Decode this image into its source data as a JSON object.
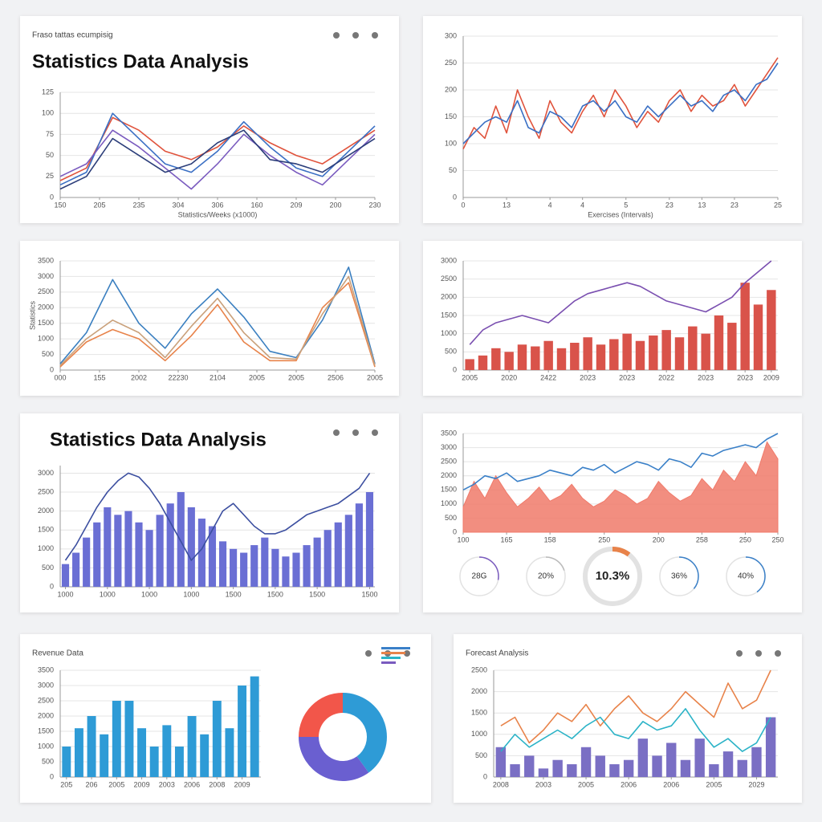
{
  "chart_data": [
    {
      "type": "line",
      "header": "Fraso tattas ecumpisig",
      "title": "Statistics Data Analysis",
      "xlabel": "Statistics/Weeks (x1000)",
      "xlim": [
        0,
        12
      ],
      "xticks": [
        {
          "value": 0,
          "label": "150"
        },
        {
          "value": 1.5,
          "label": "205"
        },
        {
          "value": 3,
          "label": "235"
        },
        {
          "value": 4.5,
          "label": "304"
        },
        {
          "value": 6,
          "label": "306"
        },
        {
          "value": 7.5,
          "label": "160"
        },
        {
          "value": 9,
          "label": "209"
        },
        {
          "value": 10.5,
          "label": "200"
        },
        {
          "value": 12,
          "label": "230"
        }
      ],
      "ylim": [
        0,
        125
      ],
      "yticks": [
        0,
        25,
        50,
        75,
        100,
        125
      ],
      "series": [
        {
          "color": "#e0533c",
          "values": [
            20,
            35,
            95,
            80,
            55,
            45,
            60,
            85,
            65,
            50,
            40,
            60,
            80
          ]
        },
        {
          "color": "#3a6fc4",
          "values": [
            15,
            30,
            100,
            70,
            40,
            30,
            55,
            90,
            60,
            35,
            25,
            55,
            85
          ]
        },
        {
          "color": "#7a5bbf",
          "values": [
            25,
            40,
            80,
            60,
            35,
            10,
            40,
            75,
            50,
            30,
            15,
            45,
            75
          ]
        },
        {
          "color": "#2c3e7a",
          "values": [
            10,
            25,
            70,
            50,
            30,
            40,
            65,
            80,
            45,
            40,
            30,
            50,
            70
          ]
        }
      ]
    },
    {
      "type": "line",
      "xlabel": "Exercises (Intervals)",
      "xlim": [
        0,
        29
      ],
      "xticks": [
        {
          "value": 0,
          "label": "0"
        },
        {
          "value": 4,
          "label": "13"
        },
        {
          "value": 8,
          "label": "4"
        },
        {
          "value": 11,
          "label": "4"
        },
        {
          "value": 15,
          "label": "5"
        },
        {
          "value": 19,
          "label": "23"
        },
        {
          "value": 22,
          "label": "13"
        },
        {
          "value": 25,
          "label": "23"
        },
        {
          "value": 29,
          "label": "25"
        }
      ],
      "ylim": [
        0,
        300
      ],
      "yticks": [
        0,
        50,
        100,
        150,
        200,
        250,
        300
      ],
      "series": [
        {
          "color": "#e0533c",
          "values": [
            90,
            130,
            110,
            170,
            120,
            200,
            150,
            110,
            180,
            140,
            120,
            160,
            190,
            150,
            200,
            170,
            130,
            160,
            140,
            180,
            200,
            160,
            190,
            170,
            180,
            210,
            170,
            200,
            230,
            260
          ]
        },
        {
          "color": "#3a6fc4",
          "values": [
            100,
            120,
            140,
            150,
            140,
            180,
            130,
            120,
            160,
            150,
            130,
            170,
            180,
            160,
            180,
            150,
            140,
            170,
            150,
            170,
            190,
            170,
            180,
            160,
            190,
            200,
            180,
            210,
            220,
            250
          ]
        }
      ]
    },
    {
      "type": "line",
      "ylabel": "Statistics",
      "xlim": [
        0,
        12
      ],
      "xticks": [
        {
          "value": 0,
          "label": "000"
        },
        {
          "value": 1.5,
          "label": "155"
        },
        {
          "value": 3,
          "label": "2002"
        },
        {
          "value": 4.5,
          "label": "22230"
        },
        {
          "value": 6,
          "label": "2104"
        },
        {
          "value": 7.5,
          "label": "2005"
        },
        {
          "value": 9,
          "label": "2005"
        },
        {
          "value": 10.5,
          "label": "2506"
        },
        {
          "value": 12,
          "label": "2005"
        }
      ],
      "ylim": [
        0,
        3500
      ],
      "yticks": [
        0,
        500,
        1000,
        1500,
        2000,
        2500,
        3000,
        3500
      ],
      "series": [
        {
          "color": "#3a7fc0",
          "values": [
            200,
            1200,
            2900,
            1500,
            700,
            1800,
            2600,
            1700,
            600,
            400,
            1600,
            3300,
            200
          ]
        },
        {
          "color": "#e8834a",
          "values": [
            100,
            900,
            1300,
            1000,
            300,
            1100,
            2100,
            900,
            300,
            300,
            2000,
            2800,
            100
          ]
        },
        {
          "color": "#c9a07a",
          "values": [
            150,
            1000,
            1600,
            1200,
            400,
            1400,
            2300,
            1200,
            400,
            350,
            1800,
            3000,
            150
          ]
        }
      ]
    },
    {
      "type": "combo",
      "xlim": [
        -0.5,
        23.5
      ],
      "xticks": [
        {
          "value": 0,
          "label": "2005"
        },
        {
          "value": 3,
          "label": "2020"
        },
        {
          "value": 6,
          "label": "2422"
        },
        {
          "value": 9,
          "label": "2023"
        },
        {
          "value": 12,
          "label": "2023"
        },
        {
          "value": 15,
          "label": "2022"
        },
        {
          "value": 18,
          "label": "2023"
        },
        {
          "value": 21,
          "label": "2023"
        },
        {
          "value": 23,
          "label": "2009"
        }
      ],
      "ylim": [
        0,
        3000
      ],
      "yticks": [
        0,
        500,
        1000,
        1500,
        2000,
        2500,
        3000
      ],
      "series": [
        {
          "kind": "bar",
          "color": "#d9534a",
          "values": [
            300,
            400,
            600,
            500,
            700,
            650,
            800,
            600,
            750,
            900,
            700,
            850,
            1000,
            800,
            950,
            1100,
            900,
            1200,
            1000,
            1500,
            1300,
            2400,
            1800,
            2200
          ]
        },
        {
          "kind": "line",
          "color": "#7a4fb0",
          "values": [
            700,
            1100,
            1300,
            1400,
            1500,
            1400,
            1300,
            1600,
            1900,
            2100,
            2200,
            2300,
            2400,
            2300,
            2100,
            1900,
            1800,
            1700,
            1600,
            1800,
            2000,
            2400,
            2700,
            3000
          ]
        }
      ]
    },
    {
      "type": "combo",
      "title": "Statistics Data Analysis",
      "xlim": [
        -0.5,
        29.5
      ],
      "xticks": [
        {
          "value": 0,
          "label": "1000"
        },
        {
          "value": 4,
          "label": "1000"
        },
        {
          "value": 8,
          "label": "1000"
        },
        {
          "value": 12,
          "label": "1000"
        },
        {
          "value": 16,
          "label": "1500"
        },
        {
          "value": 20,
          "label": "1500"
        },
        {
          "value": 24,
          "label": "1500"
        },
        {
          "value": 29,
          "label": "1500"
        }
      ],
      "ylim": [
        0,
        3200
      ],
      "yticks": [
        0,
        500,
        1000,
        1500,
        2000,
        2500,
        3000
      ],
      "series": [
        {
          "kind": "bar",
          "color": "#6a6fd4",
          "values": [
            600,
            900,
            1300,
            1700,
            2100,
            1900,
            2000,
            1700,
            1500,
            1900,
            2200,
            2500,
            2100,
            1800,
            1600,
            1200,
            1000,
            900,
            1100,
            1300,
            1000,
            800,
            900,
            1100,
            1300,
            1500,
            1700,
            1900,
            2200,
            2500
          ]
        },
        {
          "kind": "line",
          "color": "#3c4fa0",
          "values": [
            700,
            1100,
            1600,
            2100,
            2500,
            2800,
            3000,
            2900,
            2600,
            2200,
            1700,
            1200,
            700,
            1000,
            1500,
            2000,
            2200,
            1900,
            1600,
            1400,
            1400,
            1500,
            1700,
            1900,
            2000,
            2100,
            2200,
            2400,
            2600,
            3000
          ]
        }
      ]
    },
    {
      "type": "combo",
      "xlim": [
        0,
        29
      ],
      "xticks": [
        {
          "value": 0,
          "label": "100"
        },
        {
          "value": 4,
          "label": "165"
        },
        {
          "value": 8,
          "label": "158"
        },
        {
          "value": 13,
          "label": "250"
        },
        {
          "value": 18,
          "label": "200"
        },
        {
          "value": 22,
          "label": "258"
        },
        {
          "value": 26,
          "label": "250"
        },
        {
          "value": 29,
          "label": "250"
        }
      ],
      "ylim": [
        0,
        3500
      ],
      "yticks": [
        0,
        500,
        1000,
        1500,
        2000,
        2500,
        3000,
        3500
      ],
      "series": [
        {
          "kind": "area",
          "color": "#f07a6a",
          "values": [
            900,
            1800,
            1200,
            2000,
            1400,
            900,
            1200,
            1600,
            1100,
            1300,
            1700,
            1200,
            900,
            1100,
            1500,
            1300,
            1000,
            1200,
            1800,
            1400,
            1100,
            1300,
            1900,
            1500,
            2200,
            1800,
            2500,
            2000,
            3200,
            2600
          ]
        },
        {
          "kind": "line",
          "color": "#3a80c8",
          "values": [
            1500,
            1700,
            2000,
            1900,
            2100,
            1800,
            1900,
            2000,
            2200,
            2100,
            2000,
            2300,
            2200,
            2400,
            2100,
            2300,
            2500,
            2400,
            2200,
            2600,
            2500,
            2300,
            2800,
            2700,
            2900,
            3000,
            3100,
            3000,
            3300,
            3500
          ]
        }
      ],
      "gauges": {
        "values": [
          28,
          20,
          10.3,
          36,
          40
        ],
        "value_labels": [
          "28G",
          "20%",
          "10.3%",
          "36%",
          "40%"
        ],
        "colors": [
          "#7a5bbf",
          "#bbbbbb",
          "#e8834a",
          "#3a80c8",
          "#3a80c8"
        ]
      }
    },
    {
      "type": "bar",
      "header": "Revenue Data",
      "xlim": [
        -0.5,
        15.5
      ],
      "xticks": [
        {
          "value": 0,
          "label": "205"
        },
        {
          "value": 2,
          "label": "206"
        },
        {
          "value": 4,
          "label": "2005"
        },
        {
          "value": 6,
          "label": "2009"
        },
        {
          "value": 8,
          "label": "2003"
        },
        {
          "value": 10,
          "label": "2006"
        },
        {
          "value": 12,
          "label": "2008"
        },
        {
          "value": 14,
          "label": "2009"
        }
      ],
      "ylim": [
        0,
        3500
      ],
      "yticks": [
        0,
        500,
        1000,
        1500,
        2000,
        2500,
        3000,
        3500
      ],
      "series": [
        {
          "color": "#2e9bd6",
          "values": [
            1000,
            1600,
            2000,
            1400,
            2500,
            2500,
            1600,
            1000,
            1700,
            1000,
            2000,
            1400,
            2500,
            1600,
            3000,
            3300
          ]
        }
      ],
      "donut": {
        "values": [
          40,
          35,
          25
        ],
        "colors": [
          "#2e9bd6",
          "#6a5fd0",
          "#f2564a"
        ]
      }
    },
    {
      "type": "combo",
      "header": "Forecast Analysis",
      "xlim": [
        -0.5,
        19.5
      ],
      "xticks": [
        {
          "value": 0,
          "label": "2008"
        },
        {
          "value": 3,
          "label": "2003"
        },
        {
          "value": 6,
          "label": "2005"
        },
        {
          "value": 9,
          "label": "2006"
        },
        {
          "value": 12,
          "label": "2006"
        },
        {
          "value": 15,
          "label": "2005"
        },
        {
          "value": 18,
          "label": "2029"
        }
      ],
      "ylim": [
        0,
        2500
      ],
      "yticks": [
        0,
        500,
        1000,
        1500,
        2000,
        2500
      ],
      "series": [
        {
          "kind": "bar",
          "color": "#7a6fc4",
          "values": [
            700,
            300,
            500,
            200,
            400,
            300,
            700,
            500,
            300,
            400,
            900,
            500,
            800,
            400,
            900,
            300,
            600,
            400,
            700,
            1400
          ]
        },
        {
          "kind": "line",
          "color": "#e8834a",
          "values": [
            1200,
            1400,
            800,
            1100,
            1500,
            1300,
            1700,
            1200,
            1600,
            1900,
            1500,
            1300,
            1600,
            2000,
            1700,
            1400,
            2200,
            1600,
            1800,
            2500
          ]
        },
        {
          "kind": "line",
          "color": "#2bb3c7",
          "values": [
            600,
            1000,
            700,
            900,
            1100,
            900,
            1200,
            1400,
            1000,
            900,
            1300,
            1100,
            1200,
            1600,
            1100,
            700,
            900,
            600,
            800,
            1400
          ]
        }
      ]
    }
  ]
}
